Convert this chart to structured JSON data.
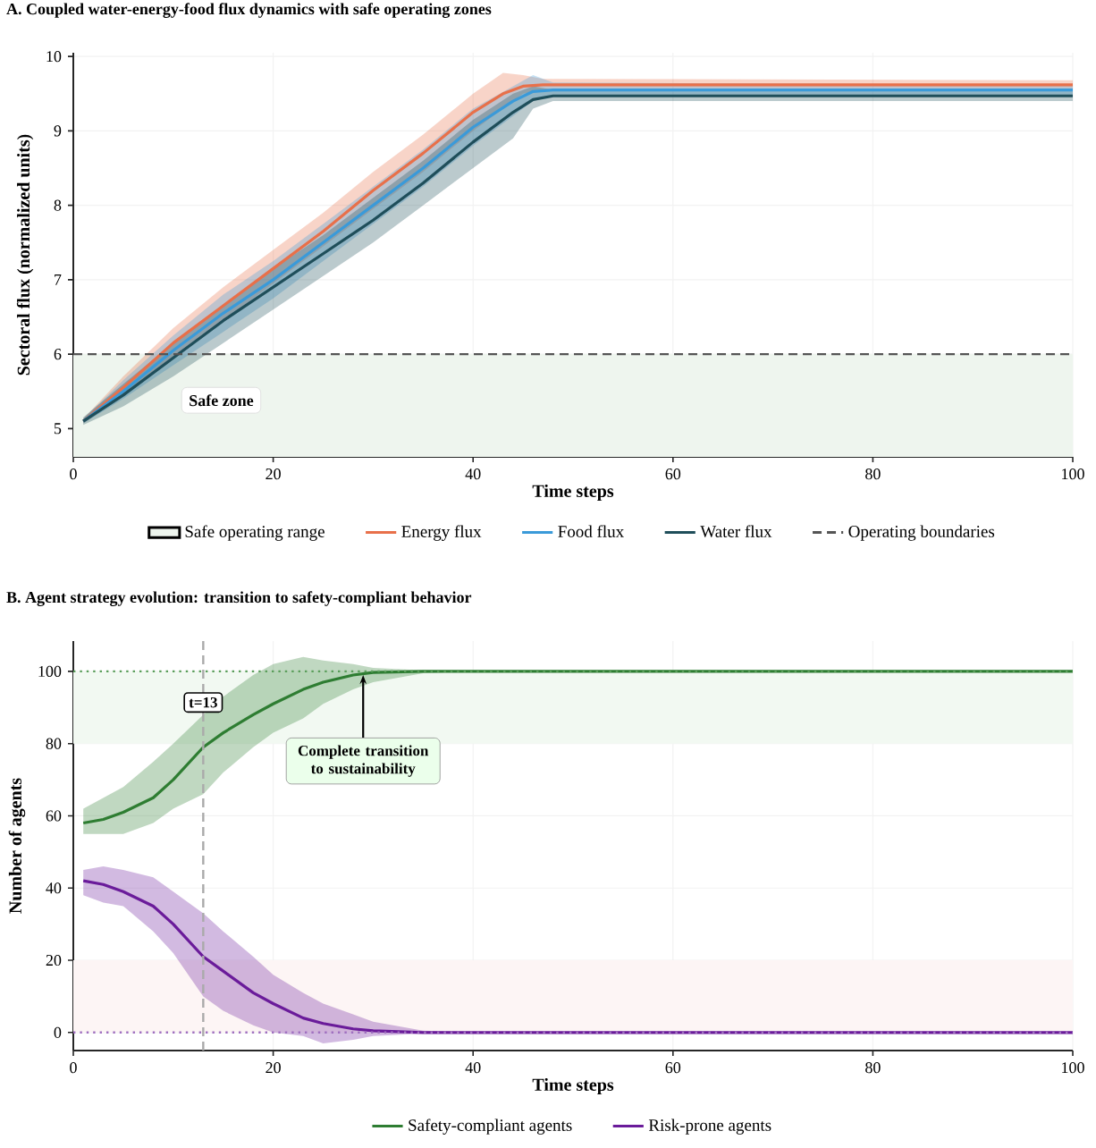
{
  "chart_data": [
    {
      "type": "line",
      "title": "A. Coupled water-energy-food flux dynamics with safe operating zones",
      "xlabel": "Time steps",
      "ylabel": "Sectoral flux (normalized units)",
      "xlim": [
        0,
        100
      ],
      "ylim": [
        4.62,
        10.05
      ],
      "xticks": [
        0,
        20,
        40,
        60,
        80,
        100
      ],
      "yticks": [
        5,
        6,
        7,
        8,
        9,
        10
      ],
      "grid": true,
      "legend": "bottom",
      "marker": "none",
      "line_style": "solid",
      "bands": [
        {
          "axis": "y",
          "from": 4.62,
          "to": 6,
          "label": "Safe operating range",
          "color": "#eef5ee"
        }
      ],
      "ref_lines": [
        {
          "axis": "y",
          "value": 6,
          "label": "Operating boundaries",
          "color": "#555555",
          "line_style": "dashed"
        }
      ],
      "annotations": [
        "Safe zone"
      ],
      "series": [
        {
          "name": "Energy flux",
          "color": "#e8704a",
          "x": [
            1,
            5,
            10,
            15,
            20,
            25,
            30,
            35,
            40,
            43,
            45,
            47,
            100
          ],
          "values": [
            5.1,
            5.55,
            6.15,
            6.65,
            7.15,
            7.65,
            8.2,
            8.7,
            9.25,
            9.5,
            9.6,
            9.62,
            9.62
          ],
          "lower": [
            5.07,
            5.45,
            5.95,
            6.45,
            6.95,
            7.45,
            7.95,
            8.45,
            9.0,
            9.3,
            9.5,
            9.55,
            9.55
          ],
          "upper": [
            5.13,
            5.7,
            6.35,
            6.9,
            7.4,
            7.9,
            8.45,
            8.95,
            9.5,
            9.78,
            9.75,
            9.7,
            9.68
          ]
        },
        {
          "name": "Food flux",
          "color": "#3a9ad9",
          "x": [
            1,
            5,
            10,
            15,
            20,
            25,
            30,
            35,
            40,
            44,
            46,
            48,
            100
          ],
          "values": [
            5.1,
            5.5,
            6.05,
            6.55,
            7.0,
            7.5,
            8.0,
            8.5,
            9.05,
            9.4,
            9.53,
            9.55,
            9.55
          ],
          "lower": [
            5.07,
            5.4,
            5.85,
            6.3,
            6.75,
            7.25,
            7.75,
            8.25,
            8.8,
            9.2,
            9.4,
            9.48,
            9.48
          ],
          "upper": [
            5.13,
            5.65,
            6.25,
            6.8,
            7.25,
            7.75,
            8.25,
            8.75,
            9.3,
            9.6,
            9.75,
            9.65,
            9.62
          ]
        },
        {
          "name": "Water flux",
          "color": "#1f4e5a",
          "x": [
            1,
            5,
            10,
            15,
            20,
            25,
            30,
            35,
            40,
            44,
            46,
            48,
            100
          ],
          "values": [
            5.1,
            5.45,
            5.95,
            6.45,
            6.9,
            7.35,
            7.8,
            8.3,
            8.85,
            9.25,
            9.42,
            9.47,
            9.47
          ],
          "lower": [
            5.05,
            5.3,
            5.7,
            6.15,
            6.6,
            7.05,
            7.5,
            8.0,
            8.5,
            8.9,
            9.3,
            9.4,
            9.4
          ],
          "upper": [
            5.15,
            5.6,
            6.15,
            6.65,
            7.15,
            7.6,
            8.1,
            8.6,
            9.15,
            9.5,
            9.6,
            9.55,
            9.54
          ]
        }
      ]
    },
    {
      "type": "line",
      "title": "B. Agent strategy evolution: transition to safety-compliant behavior",
      "xlabel": "Time steps",
      "ylabel": "Number of agents",
      "xlim": [
        0,
        100
      ],
      "ylim": [
        -5,
        108.4
      ],
      "xticks": [
        0,
        20,
        40,
        60,
        80,
        100
      ],
      "yticks": [
        0,
        20,
        40,
        60,
        80,
        100
      ],
      "grid": true,
      "legend": "bottom",
      "marker": "none",
      "line_style": "solid",
      "bands": [
        {
          "axis": "y",
          "from": 80,
          "to": 100,
          "color": "#f2f9f2"
        },
        {
          "axis": "y",
          "from": 0,
          "to": 20,
          "color": "#fdf5f5"
        }
      ],
      "ref_lines": [
        {
          "axis": "y",
          "value": 100,
          "color": "#5a9e5a",
          "line_style": "dotted"
        },
        {
          "axis": "y",
          "value": 0,
          "color": "#a070c0",
          "line_style": "dotted"
        },
        {
          "axis": "x",
          "value": 13,
          "label": "t=13",
          "color": "#aaaaaa",
          "line_style": "dashed"
        }
      ],
      "annotations": [
        {
          "text": "Complete transition to sustainability",
          "x": 29,
          "y": 99
        }
      ],
      "series": [
        {
          "name": "Safety-compliant agents",
          "color": "#2e7d32",
          "x": [
            1,
            3,
            5,
            8,
            10,
            13,
            15,
            18,
            20,
            23,
            25,
            28,
            30,
            35,
            40,
            100
          ],
          "values": [
            58,
            59,
            61,
            65,
            70,
            79,
            83,
            88,
            91,
            95,
            97,
            99,
            99.7,
            100,
            100,
            100
          ],
          "lower": [
            55,
            55,
            55,
            58,
            62,
            66,
            72,
            79,
            83,
            87,
            91,
            95,
            97,
            99.5,
            100,
            100
          ],
          "upper": [
            62,
            65,
            68,
            75,
            80,
            88,
            93,
            99,
            102,
            104,
            103,
            102,
            101,
            100.3,
            100,
            100
          ]
        },
        {
          "name": "Risk-prone agents",
          "color": "#6a1b9a",
          "x": [
            1,
            3,
            5,
            8,
            10,
            13,
            15,
            18,
            20,
            23,
            25,
            28,
            30,
            35,
            40,
            100
          ],
          "values": [
            42,
            41,
            39,
            35,
            30,
            21,
            17,
            11,
            8,
            4,
            2.5,
            1,
            0.5,
            0,
            0,
            0
          ],
          "lower": [
            38,
            36,
            35,
            28,
            22,
            10,
            6,
            2,
            0,
            -1,
            -3,
            -2,
            -1,
            -0.3,
            0,
            0
          ],
          "upper": [
            45,
            46,
            45,
            43,
            39,
            33,
            28,
            21,
            16,
            11,
            8,
            5,
            3,
            0.5,
            0,
            0
          ]
        }
      ]
    }
  ]
}
